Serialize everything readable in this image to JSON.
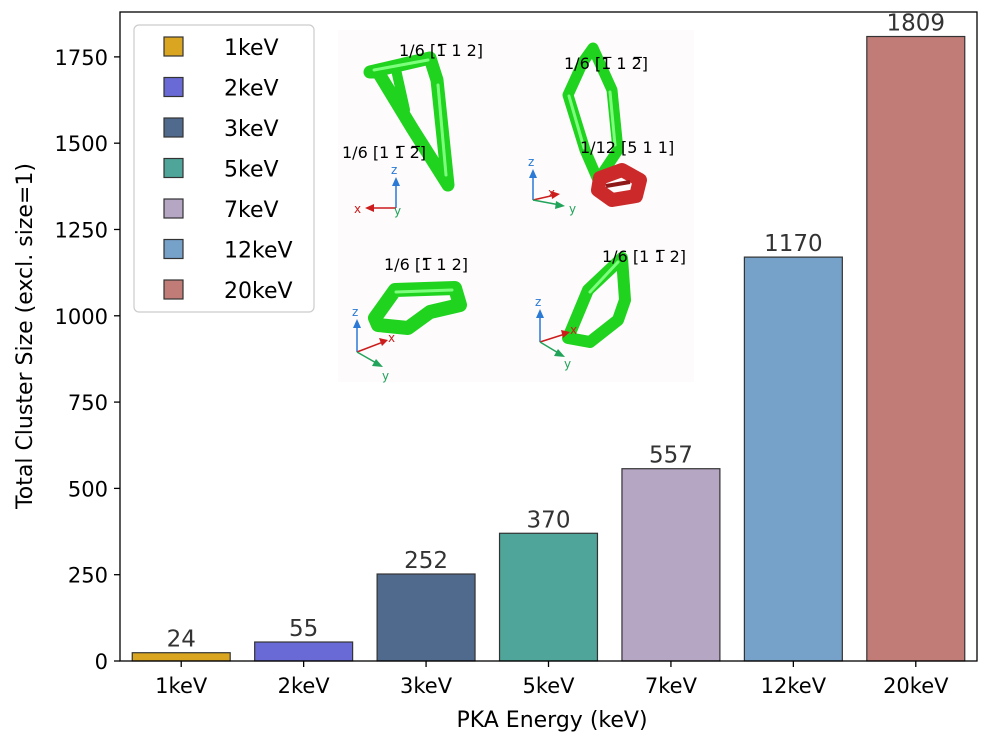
{
  "chart_data": {
    "type": "bar",
    "categories": [
      "1keV",
      "2keV",
      "3keV",
      "5keV",
      "7keV",
      "12keV",
      "20keV"
    ],
    "values": [
      24,
      55,
      252,
      370,
      557,
      1170,
      1809
    ],
    "data_labels": [
      "24",
      "55",
      "252",
      "370",
      "557",
      "1170",
      "1809"
    ],
    "colors": [
      "#DAA520",
      "#6A6AD6",
      "#506A8E",
      "#4FA59A",
      "#B5A6C4",
      "#76A1C9",
      "#C27C78"
    ],
    "xlabel": "PKA Energy (keV)",
    "ylabel": "Total Cluster Size (excl. size=1)",
    "ylim": [
      0,
      1880
    ],
    "yticks": [
      0,
      250,
      500,
      750,
      1000,
      1250,
      1500,
      1750
    ],
    "ytick_labels": [
      "0",
      "250",
      "500",
      "750",
      "1000",
      "1250",
      "1500",
      "1750"
    ],
    "grid": false,
    "legend": {
      "position": "top-left",
      "entries": [
        "1keV",
        "2keV",
        "3keV",
        "5keV",
        "7keV",
        "12keV",
        "20keV"
      ]
    },
    "inset_annotations": {
      "panel_1": [
        "1/6 [1̅ 1 2]",
        "1/6 [1 1̅ 2̅]"
      ],
      "panel_2": [
        "1/6 [1̅ 1 2̅]",
        "1/12 [5 1 1]"
      ],
      "panel_3": [
        "1/6 [1̅ 1 2]"
      ],
      "panel_4": [
        "1/6 [1 1̅ 2]"
      ],
      "axis_letters": [
        "x",
        "y",
        "z"
      ]
    }
  }
}
